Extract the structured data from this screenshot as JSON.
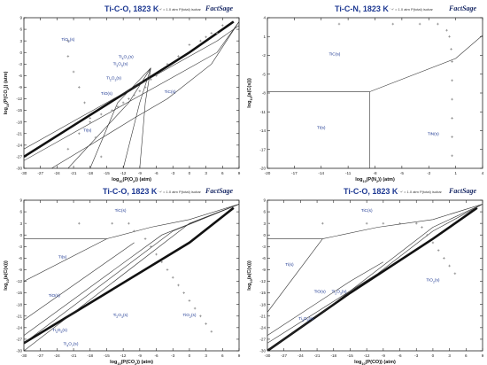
{
  "figure": {
    "logo_text": "FactSage",
    "isobar_note": "' +' = 1.0 atm P(total) isobar"
  },
  "chart_data": [
    {
      "type": "line",
      "title": "Ti-C-O, 1823 K",
      "xlabel": "log10(P(O2)) (atm)",
      "ylabel": "log10(P(CO2)) (atm)",
      "xlim": [
        -30,
        9
      ],
      "ylim": [
        -30,
        9
      ],
      "xticks": [
        -30,
        -27,
        -24,
        -21,
        -18,
        -15,
        -12,
        -9,
        -6,
        -3,
        0,
        3,
        6,
        9
      ],
      "yticks": [
        9,
        6,
        3,
        0,
        -3,
        -6,
        -9,
        -12,
        -15,
        -18,
        -21,
        -24,
        -27,
        -30
      ],
      "regions": [
        {
          "label": "TiO2(s)",
          "x": -22,
          "y": 3
        },
        {
          "label": "Ti4O7(s)",
          "x": -11.5,
          "y": -1.4
        },
        {
          "label": "Ti3O5(s)",
          "x": -12.5,
          "y": -3.3
        },
        {
          "label": "Ti2O3(s)",
          "x": -13.7,
          "y": -7
        },
        {
          "label": "TiO(s)",
          "x": -15,
          "y": -11
        },
        {
          "label": "Ti(s)",
          "x": -18.5,
          "y": -20.5
        },
        {
          "label": "TiC(s)",
          "x": -3.5,
          "y": -10.5
        }
      ],
      "boundaries": [
        [
          [
            -30,
            -25
          ],
          [
            -25,
            -21
          ],
          [
            -20,
            -17
          ],
          [
            -15,
            -13
          ],
          [
            -10,
            -9
          ],
          [
            -5,
            -5
          ],
          [
            0,
            -1
          ],
          [
            5,
            3
          ],
          [
            9,
            7
          ]
        ],
        [
          [
            -30,
            -28
          ],
          [
            -20,
            -20
          ],
          [
            -10,
            -12
          ],
          [
            0,
            -4
          ],
          [
            5,
            0
          ],
          [
            9,
            8
          ]
        ],
        [
          [
            -25,
            -30
          ],
          [
            -18,
            -24
          ],
          [
            -10,
            -17
          ],
          [
            -4,
            -12
          ],
          [
            4,
            -3
          ],
          [
            9,
            8
          ]
        ],
        [
          [
            -22,
            -30
          ],
          [
            -11,
            -13
          ],
          [
            -7,
            -4
          ]
        ],
        [
          [
            -18,
            -30
          ],
          [
            -13,
            -13
          ],
          [
            -7,
            -4
          ]
        ],
        [
          [
            -12,
            -30
          ],
          [
            -9,
            -13
          ],
          [
            -7,
            -4
          ]
        ],
        [
          [
            -9,
            -30
          ],
          [
            -8,
            -13
          ],
          [
            -7,
            -4
          ]
        ]
      ],
      "isobar": [
        [
          -22,
          -25
        ],
        [
          -20,
          -21
        ],
        [
          -18,
          -18
        ],
        [
          -16,
          -16
        ],
        [
          -14,
          -15
        ],
        [
          -13,
          -14
        ],
        [
          -12,
          -13
        ],
        [
          -11,
          -12
        ],
        [
          -10,
          -11
        ],
        [
          -9,
          -10
        ],
        [
          -8,
          -9
        ],
        [
          -7,
          -7
        ],
        [
          -6,
          -6
        ],
        [
          -4,
          -3
        ],
        [
          -2,
          -1
        ],
        [
          0,
          2
        ],
        [
          2,
          3
        ],
        [
          3,
          4
        ],
        [
          4,
          5
        ],
        [
          5,
          5
        ],
        [
          6,
          7
        ]
      ],
      "isobar2": [
        [
          -22,
          3
        ],
        [
          -22,
          -1
        ],
        [
          -21,
          -5
        ],
        [
          -20,
          -9
        ],
        [
          -19,
          -13
        ],
        [
          -18,
          -17
        ],
        [
          -17,
          -22
        ],
        [
          -16,
          -27
        ],
        [
          -15,
          -31
        ]
      ],
      "band": [
        [
          -30,
          -27
        ],
        [
          -20,
          -18
        ],
        [
          -10,
          -9
        ],
        [
          0,
          0
        ],
        [
          8,
          8
        ]
      ]
    },
    {
      "type": "line",
      "title": "Ti-C-N, 1823 K",
      "xlabel": "log10(P(N2)) (atm)",
      "ylabel": "log10(a(C(s)))",
      "xlim": [
        -20,
        4
      ],
      "ylim": [
        -20,
        4
      ],
      "xticks": [
        -20,
        -17,
        -14,
        -11,
        -8,
        -5,
        -2,
        1,
        4
      ],
      "yticks": [
        4,
        1,
        -2,
        -5,
        -8,
        -11,
        -14,
        -17,
        -20
      ],
      "regions": [
        {
          "label": "TiC(s)",
          "x": -12.5,
          "y": -2
        },
        {
          "label": "Ti(s)",
          "x": -14,
          "y": -13.7
        },
        {
          "label": "TiN(s)",
          "x": -1.5,
          "y": -14.7
        }
      ],
      "boundaries": [
        [
          [
            -20,
            -7.8
          ],
          [
            -8.6,
            -7.8
          ],
          [
            1,
            -2.5
          ],
          [
            4,
            1.2
          ]
        ],
        [
          [
            -8.6,
            -7.8
          ],
          [
            -8.6,
            -20
          ]
        ]
      ],
      "isobar": [
        [
          -12,
          3
        ],
        [
          -6,
          3
        ],
        [
          -3,
          3
        ],
        [
          -1,
          3
        ],
        [
          0,
          2
        ],
        [
          0.3,
          1
        ],
        [
          0.5,
          -1
        ],
        [
          0.6,
          -3
        ],
        [
          0.6,
          -6
        ],
        [
          0.6,
          -9
        ],
        [
          0.6,
          -12
        ],
        [
          0.6,
          -15
        ],
        [
          0.6,
          -18
        ]
      ]
    },
    {
      "type": "line",
      "title": "Ti-C-O, 1823 K",
      "xlabel": "log10(P(CO2)) (atm)",
      "ylabel": "log10(a(C(s)))",
      "xlim": [
        -30,
        9
      ],
      "ylim": [
        -30,
        9
      ],
      "xticks": [
        -30,
        -27,
        -24,
        -21,
        -18,
        -15,
        -12,
        -9,
        -6,
        -3,
        0,
        3,
        6,
        9
      ],
      "yticks": [
        9,
        6,
        3,
        0,
        -3,
        -6,
        -9,
        -12,
        -15,
        -18,
        -21,
        -24,
        -27,
        -30
      ],
      "regions": [
        {
          "label": "TiC(s)",
          "x": -12.5,
          "y": 6
        },
        {
          "label": "Ti(s)",
          "x": -23,
          "y": -6
        },
        {
          "label": "TiO(s)",
          "x": -24.5,
          "y": -16
        },
        {
          "label": "Ti2O3(s)",
          "x": -12.5,
          "y": -21
        },
        {
          "label": "Ti3O5(s)",
          "x": -23.5,
          "y": -25
        },
        {
          "label": "Ti4O7(s)",
          "x": -21.5,
          "y": -28.5
        },
        {
          "label": "TiO2(s)",
          "x": 0,
          "y": -21
        }
      ],
      "boundaries": [
        [
          [
            -30,
            -1
          ],
          [
            -15,
            -1
          ],
          [
            -7,
            2
          ],
          [
            0,
            4
          ],
          [
            9,
            8
          ]
        ],
        [
          [
            -30,
            -12
          ],
          [
            -15,
            -1
          ]
        ],
        [
          [
            -30,
            -22
          ],
          [
            -10,
            -2
          ]
        ],
        [
          [
            -30,
            -26
          ],
          [
            -5,
            0
          ],
          [
            9,
            8
          ]
        ],
        [
          [
            -30,
            -28
          ],
          [
            -3,
            1
          ],
          [
            9,
            8
          ]
        ],
        [
          [
            -30,
            -30
          ],
          [
            0,
            3
          ],
          [
            9,
            8
          ]
        ]
      ],
      "isobar": [
        [
          -30,
          3
        ],
        [
          -20,
          3
        ],
        [
          -14,
          3
        ],
        [
          -11,
          3
        ],
        [
          -10,
          1
        ],
        [
          -8,
          -1
        ],
        [
          -7,
          -3
        ],
        [
          -6,
          -5
        ],
        [
          -5,
          -7
        ],
        [
          -4,
          -9
        ],
        [
          -3,
          -11
        ],
        [
          -2,
          -13
        ],
        [
          -1,
          -15
        ],
        [
          0,
          -17
        ],
        [
          1,
          -19
        ],
        [
          2,
          -21
        ],
        [
          3,
          -23
        ],
        [
          4,
          -25
        ]
      ],
      "band": [
        [
          -30,
          -28
        ],
        [
          -15,
          -15
        ],
        [
          0,
          -2
        ],
        [
          8,
          7
        ]
      ]
    },
    {
      "type": "line",
      "title": "Ti-C-O, 1823 K",
      "xlabel": "log10(P(CO)) (atm)",
      "ylabel": "log10(a(C(s)))",
      "xlim": [
        -30,
        9
      ],
      "ylim": [
        -30,
        9
      ],
      "xticks": [
        -30,
        -27,
        -24,
        -21,
        -18,
        -15,
        -12,
        -9,
        -6,
        -3,
        0,
        3,
        6,
        9
      ],
      "yticks": [
        9,
        6,
        3,
        0,
        -3,
        -6,
        -9,
        -12,
        -15,
        -18,
        -21,
        -24,
        -27,
        -30
      ],
      "regions": [
        {
          "label": "TiC(s)",
          "x": -12,
          "y": 6
        },
        {
          "label": "Ti(s)",
          "x": -26,
          "y": -8
        },
        {
          "label": "TiO(s)",
          "x": -20.5,
          "y": -15
        },
        {
          "label": "Ti2O3(s)",
          "x": -17,
          "y": -15
        },
        {
          "label": "Ti3O5(s)",
          "x": -23,
          "y": -22
        },
        {
          "label": "TiO2(s)",
          "x": 0,
          "y": -12
        }
      ],
      "boundaries": [
        [
          [
            -30,
            -1
          ],
          [
            -20,
            -1
          ],
          [
            -10,
            2
          ],
          [
            0,
            4
          ],
          [
            9,
            8
          ]
        ],
        [
          [
            -30,
            -20
          ],
          [
            -20,
            -1
          ]
        ],
        [
          [
            -30,
            -26
          ],
          [
            -15,
            -12
          ],
          [
            -9,
            -7
          ]
        ],
        [
          [
            -30,
            -28
          ],
          [
            -10,
            -10
          ],
          [
            0,
            1
          ],
          [
            9,
            8
          ]
        ],
        [
          [
            -30,
            -30
          ],
          [
            -20,
            -20
          ],
          [
            0,
            2
          ],
          [
            9,
            8
          ]
        ]
      ],
      "isobar": [
        [
          -30,
          3
        ],
        [
          -20,
          3
        ],
        [
          -12,
          3
        ],
        [
          -9,
          3
        ],
        [
          -6,
          3
        ],
        [
          -3,
          3
        ],
        [
          -2,
          2
        ],
        [
          -1,
          0
        ],
        [
          0,
          -2
        ],
        [
          1,
          -4
        ],
        [
          2,
          -6
        ],
        [
          3,
          -8
        ],
        [
          4,
          -10
        ]
      ],
      "band": [
        [
          -30,
          -30
        ],
        [
          -15,
          -15
        ],
        [
          0,
          -1
        ],
        [
          8,
          7
        ]
      ]
    }
  ]
}
